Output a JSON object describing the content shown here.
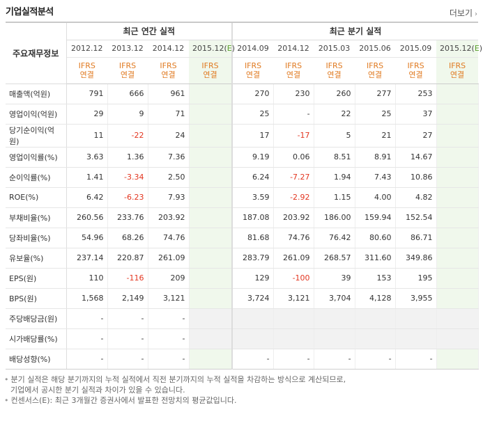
{
  "title": "기업실적분석",
  "more_label": "더보기",
  "row_header": "주요재무정보",
  "groups": {
    "annual": "최근 연간 실적",
    "quarterly": "최근 분기 실적"
  },
  "periods": [
    "2012.12",
    "2013.12",
    "2014.12",
    "2015.12(E)",
    "2014.09",
    "2014.12",
    "2015.03",
    "2015.06",
    "2015.09",
    "2015.12(E)"
  ],
  "accounting": {
    "line1": "IFRS",
    "line2": "연결"
  },
  "rows": [
    {
      "label": "매출액(억원)",
      "values": [
        "791",
        "666",
        "961",
        "",
        "270",
        "230",
        "260",
        "277",
        "253",
        ""
      ]
    },
    {
      "label": "영업이익(억원)",
      "values": [
        "29",
        "9",
        "71",
        "",
        "25",
        "-",
        "22",
        "25",
        "37",
        ""
      ]
    },
    {
      "label": "당기순이익(억원)",
      "values": [
        "11",
        "-22",
        "24",
        "",
        "17",
        "-17",
        "5",
        "21",
        "27",
        ""
      ]
    },
    {
      "label": "영업이익률(%)",
      "values": [
        "3.63",
        "1.36",
        "7.36",
        "",
        "9.19",
        "0.06",
        "8.51",
        "8.91",
        "14.67",
        ""
      ]
    },
    {
      "label": "순이익률(%)",
      "values": [
        "1.41",
        "-3.34",
        "2.50",
        "",
        "6.24",
        "-7.27",
        "1.94",
        "7.43",
        "10.86",
        ""
      ]
    },
    {
      "label": "ROE(%)",
      "values": [
        "6.42",
        "-6.23",
        "7.93",
        "",
        "3.59",
        "-2.92",
        "1.15",
        "4.00",
        "4.82",
        ""
      ]
    },
    {
      "label": "부채비율(%)",
      "values": [
        "260.56",
        "233.76",
        "203.92",
        "",
        "187.08",
        "203.92",
        "186.00",
        "159.94",
        "152.54",
        ""
      ]
    },
    {
      "label": "당좌비율(%)",
      "values": [
        "54.96",
        "68.26",
        "74.76",
        "",
        "81.68",
        "74.76",
        "76.42",
        "80.60",
        "86.71",
        ""
      ]
    },
    {
      "label": "유보율(%)",
      "values": [
        "237.14",
        "220.87",
        "261.09",
        "",
        "283.79",
        "261.09",
        "268.57",
        "311.60",
        "349.86",
        ""
      ]
    },
    {
      "label": "EPS(원)",
      "values": [
        "110",
        "-116",
        "209",
        "",
        "129",
        "-100",
        "39",
        "153",
        "195",
        ""
      ]
    },
    {
      "label": "BPS(원)",
      "values": [
        "1,568",
        "2,149",
        "3,121",
        "",
        "3,724",
        "3,121",
        "3,704",
        "4,128",
        "3,955",
        ""
      ]
    },
    {
      "label": "주당배당금(원)",
      "values": [
        "-",
        "-",
        "-",
        "",
        "",
        "",
        "",
        "",
        "",
        ""
      ]
    },
    {
      "label": "시가배당률(%)",
      "values": [
        "-",
        "-",
        "-",
        "",
        "",
        "",
        "",
        "",
        "",
        ""
      ]
    },
    {
      "label": "배당성향(%)",
      "values": [
        "-",
        "-",
        "-",
        "",
        "-",
        "-",
        "-",
        "-",
        "-",
        ""
      ]
    }
  ],
  "notes": [
    "분기 실적은 해당 분기까지의 누적 실적에서 직전 분기까지의 누적 실적을 차감하는 방식으로 계산되므로,",
    "기업에서 공시한 분기 실적과 차이가 있을 수 있습니다.",
    "컨센서스(E): 최근 3개월간 증권사에서 발표한 전망치의 평균값입니다."
  ],
  "colors": {
    "negative": "#e3351f",
    "accounting": "#e07a21",
    "estimate_bg": "#f0f8ec",
    "estimate_mark": "#5aa02c"
  }
}
